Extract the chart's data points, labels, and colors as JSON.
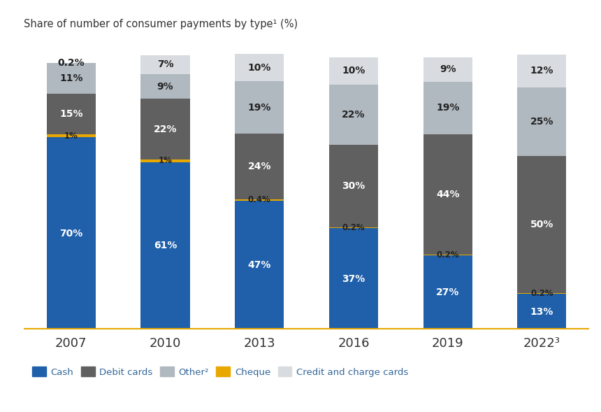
{
  "title": "Share of number of consumer payments by type¹ (%)",
  "years": [
    "2007",
    "2010",
    "2013",
    "2016",
    "2019",
    "2022³"
  ],
  "cash": [
    70,
    61,
    47,
    37,
    27,
    13
  ],
  "debit_cards": [
    15,
    22,
    24,
    30,
    44,
    50
  ],
  "cheque": [
    1,
    1,
    0.4,
    0.2,
    0.2,
    0.2
  ],
  "other": [
    11,
    9,
    19,
    22,
    19,
    25
  ],
  "credit": [
    0.2,
    7,
    10,
    10,
    9,
    12
  ],
  "colors": {
    "cash": "#2060aa",
    "debit": "#606060",
    "cheque": "#e8a800",
    "other": "#b0b8c0",
    "credit": "#d8dce0"
  },
  "background": "#ffffff",
  "axis_line_color": "#e8a800",
  "bar_width": 0.52,
  "legend_labels": [
    "Cash",
    "Debit cards",
    "Other²",
    "Cheque",
    "Credit and charge cards"
  ]
}
